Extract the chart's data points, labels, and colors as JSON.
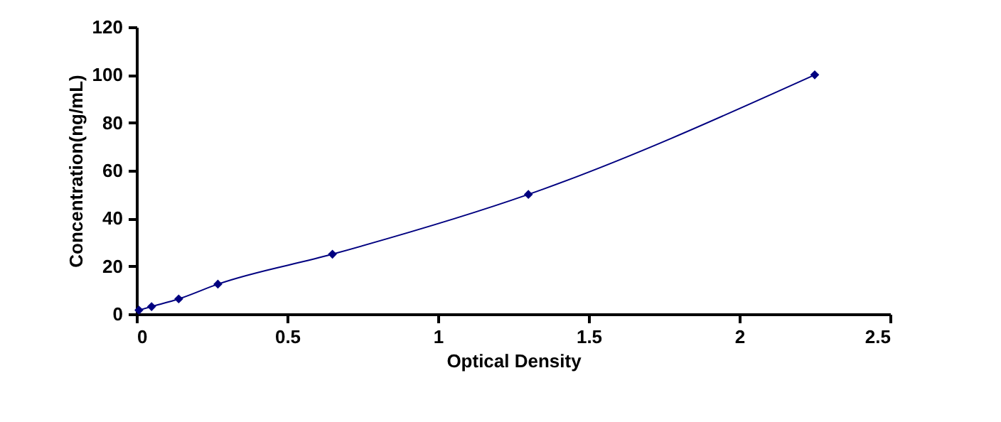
{
  "chart_data": {
    "type": "line",
    "xlabel": "Optical Density",
    "ylabel": "Concentration(ng/mL)",
    "x": [
      0.008,
      0.05,
      0.14,
      0.27,
      0.65,
      1.3,
      2.25
    ],
    "series": [
      {
        "color": "#000080",
        "values": [
          1.6,
          3.1,
          6.3,
          12.5,
          25,
          50,
          100
        ]
      }
    ],
    "xlim": [
      0,
      2.5
    ],
    "xticks": [
      0,
      0.5,
      1,
      1.5,
      2,
      2.5
    ],
    "ylim": [
      0,
      120
    ],
    "yticks": [
      0,
      20,
      40,
      60,
      80,
      100,
      120
    ],
    "marker": "diamond",
    "line_style": "solid",
    "grid": false
  }
}
